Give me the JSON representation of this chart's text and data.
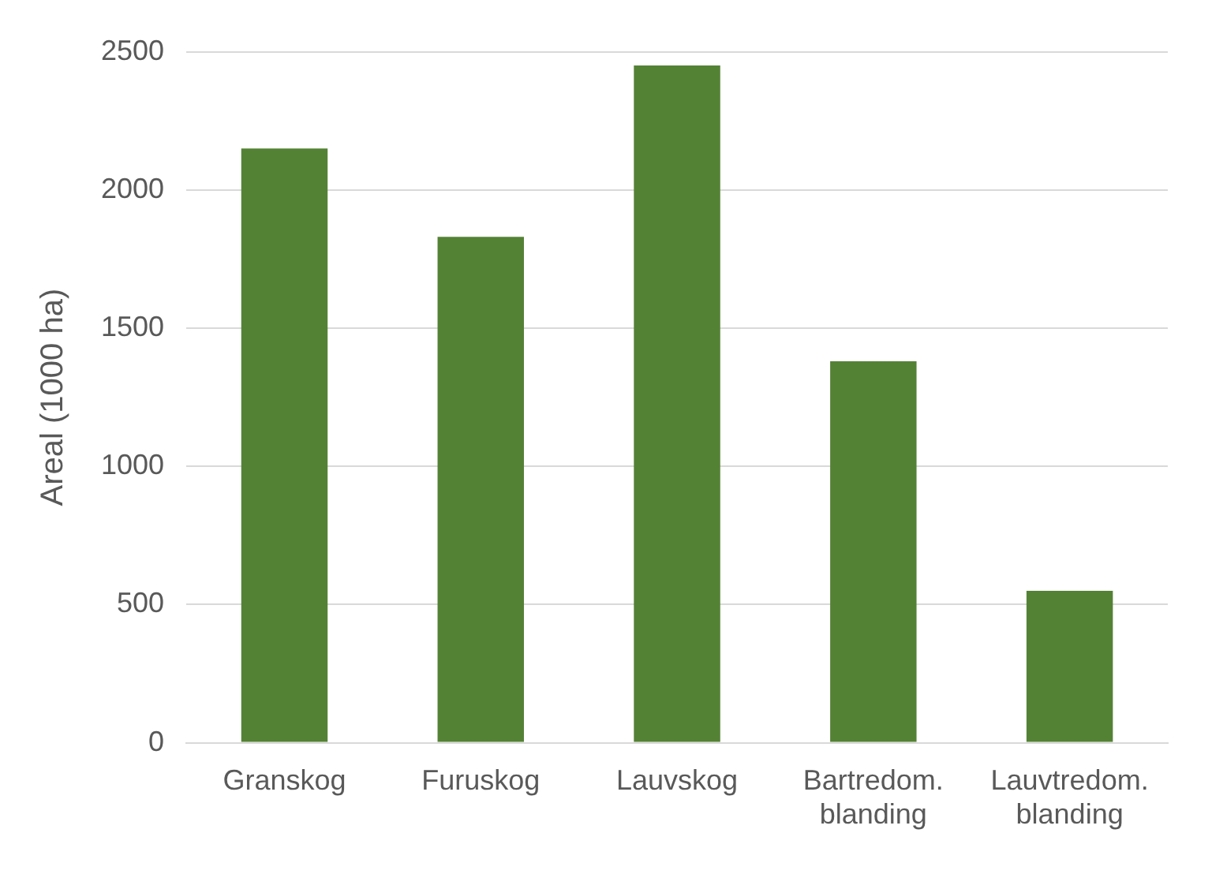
{
  "chart_data": {
    "type": "bar",
    "ylabel": "Areal (1000 ha)",
    "categories": [
      "Granskog",
      "Furuskog",
      "Lauvskog",
      "Bartredom. blanding",
      "Lauvtredom. blanding"
    ],
    "values": [
      2150,
      1830,
      2450,
      1380,
      550
    ],
    "color": "#548235",
    "ylim": [
      0,
      2500
    ],
    "yticks": [
      0,
      500,
      1000,
      1500,
      2000,
      2500
    ],
    "grid": "y",
    "legend": false
  }
}
